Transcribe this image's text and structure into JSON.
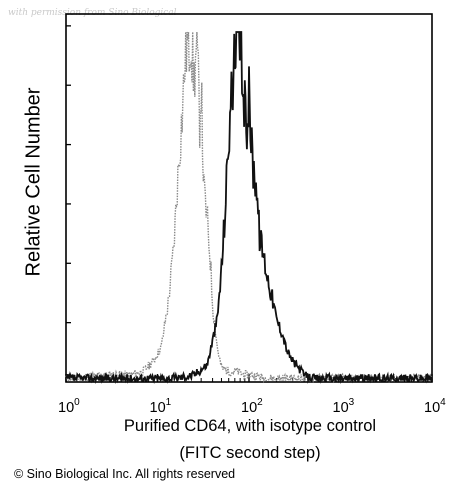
{
  "watermark": "with permission from Sino Biological",
  "copyright": "© Sino Biological Inc. All rights reserved",
  "chart_data": {
    "type": "area",
    "title": "",
    "xlabel_line1": "Purified CD64, with isotype control",
    "xlabel_line2": "(FITC second step)",
    "ylabel": "Relative Cell Number",
    "x_scale": "log",
    "xlim": [
      1,
      10000
    ],
    "x_ticks": [
      {
        "base": "10",
        "exp": "0"
      },
      {
        "base": "10",
        "exp": "1"
      },
      {
        "base": "10",
        "exp": "2"
      },
      {
        "base": "10",
        "exp": "3"
      },
      {
        "base": "10",
        "exp": "4"
      }
    ],
    "ylim": [
      0,
      100
    ],
    "y_tick_count": 6,
    "grid": false,
    "series": [
      {
        "role": "isotype control",
        "color": "#8a8a8a",
        "x": [
          1,
          3,
          5,
          7,
          9,
          11,
          13,
          15,
          17,
          19,
          20,
          21,
          22,
          23,
          25,
          27,
          29,
          30,
          32,
          35,
          38,
          40,
          45,
          50,
          60,
          75,
          90,
          110,
          150,
          300,
          1000,
          10000
        ],
        "y": [
          1,
          2,
          2,
          3,
          6,
          10,
          22,
          38,
          62,
          80,
          92,
          97,
          94,
          100,
          86,
          96,
          74,
          86,
          55,
          46,
          34,
          22,
          10,
          4,
          3,
          3,
          2,
          2,
          1,
          1,
          1,
          1
        ]
      },
      {
        "role": "CD64",
        "color": "#111111",
        "x": [
          1,
          15,
          25,
          35,
          45,
          50,
          55,
          60,
          65,
          70,
          75,
          80,
          85,
          90,
          95,
          100,
          110,
          120,
          130,
          140,
          160,
          180,
          200,
          230,
          260,
          300,
          350,
          400,
          500,
          1000,
          10000
        ],
        "y": [
          1,
          1,
          2,
          5,
          18,
          32,
          50,
          70,
          84,
          92,
          100,
          97,
          85,
          78,
          74,
          82,
          62,
          58,
          42,
          38,
          30,
          24,
          18,
          14,
          9,
          6,
          4,
          2,
          1,
          1,
          1
        ]
      }
    ]
  }
}
